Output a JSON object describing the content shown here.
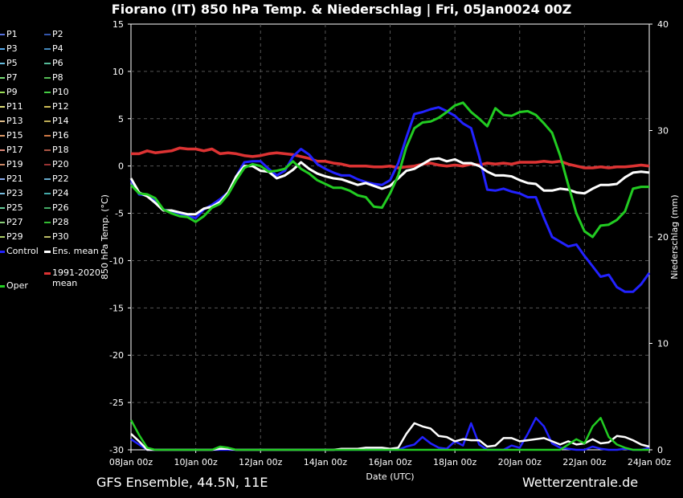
{
  "title": "Fiorano  (IT)  850 hPa Temp. & Niederschlag | Fri, 05Jan0024 00Z",
  "footer_left": "GFS Ensemble, 44.5N, 11E",
  "footer_right": "Wetterzentrale.de",
  "chart_data": {
    "type": "line",
    "xlabel": "Date (UTC)",
    "ylabel": "850 hPa Temp. (°C)",
    "y2label": "Niederschlag (mm)",
    "x_ticks": [
      "08Jan 00z",
      "10Jan 00z",
      "12Jan 00z",
      "14Jan 00z",
      "16Jan 00z",
      "18Jan 00z",
      "20Jan 00z",
      "22Jan 00z",
      "24Jan 00z"
    ],
    "ylim": [
      -30,
      15
    ],
    "y_ticks": [
      15,
      10,
      5,
      0,
      -5,
      -10,
      -15,
      -20,
      -25,
      -30
    ],
    "y2lim": [
      0,
      40
    ],
    "y2_ticks": [
      40,
      30,
      20,
      10,
      0
    ],
    "grid": true,
    "x_step_hours": 6,
    "x_start_day": 8,
    "series": [
      {
        "name": "Oper",
        "color": "#22cc22",
        "values": [
          -2,
          -2.9,
          -3,
          -3.4,
          -4.6,
          -5,
          -5.3,
          -5.4,
          -5.9,
          -5.3,
          -4.4,
          -4,
          -3,
          -1.5,
          -0.2,
          0.2,
          0,
          -0.6,
          -0.5,
          -0.3,
          0.5,
          -0.3,
          -0.8,
          -1.5,
          -1.9,
          -2.3,
          -2.3,
          -2.6,
          -3.1,
          -3.3,
          -4.3,
          -4.4,
          -2.9,
          -1,
          2,
          4,
          4.6,
          4.7,
          5.1,
          5.7,
          6.4,
          6.7,
          5.7,
          5,
          4.2,
          6.1,
          5.4,
          5.3,
          5.7,
          5.8,
          5.4,
          4.5,
          3.5,
          1.1,
          -2,
          -5,
          -6.9,
          -7.5,
          -6.3,
          -6.2,
          -5.7,
          -4.8,
          -2.4,
          -2.2,
          -2.2
        ]
      },
      {
        "name": "Control",
        "color": "#2222ff",
        "values": [
          -1.5,
          -3,
          -3.1,
          -3.6,
          -4.6,
          -4.8,
          -5,
          -5.3,
          -5.5,
          -4.6,
          -4.1,
          -3.5,
          -2.8,
          -1.1,
          0.4,
          0.5,
          0.5,
          -0.3,
          -1,
          -0.5,
          1,
          1.8,
          1.2,
          0.2,
          -0.3,
          -0.7,
          -1,
          -1,
          -1.4,
          -1.7,
          -1.9,
          -2,
          -1.5,
          0.3,
          3,
          5.5,
          5.7,
          6,
          6.2,
          5.8,
          5.3,
          4.5,
          4,
          1,
          -2.5,
          -2.6,
          -2.4,
          -2.7,
          -2.9,
          -3.3,
          -3.3,
          -5.5,
          -7.5,
          -8,
          -8.5,
          -8.3,
          -9.5,
          -10.6,
          -11.7,
          -11.5,
          -12.8,
          -13.3,
          -13.3,
          -12.5,
          -11.3
        ]
      },
      {
        "name": "Ens. mean",
        "color": "#ffffff",
        "values": [
          -1.3,
          -2.8,
          -3.2,
          -3.9,
          -4.7,
          -4.7,
          -4.9,
          -5.1,
          -5.1,
          -4.5,
          -4.3,
          -3.8,
          -2.8,
          -1.1,
          0,
          0,
          -0.5,
          -0.6,
          -1.3,
          -1,
          -0.4,
          0.4,
          -0.3,
          -0.8,
          -1.1,
          -1.3,
          -1.4,
          -1.7,
          -2,
          -1.8,
          -2.1,
          -2.4,
          -2.1,
          -1.3,
          -0.5,
          -0.3,
          0.2,
          0.7,
          0.8,
          0.5,
          0.7,
          0.3,
          0.3,
          0,
          -0.6,
          -1,
          -1,
          -1.1,
          -1.5,
          -1.8,
          -1.9,
          -2.6,
          -2.6,
          -2.4,
          -2.5,
          -2.8,
          -2.9,
          -2.4,
          -2,
          -2,
          -1.9,
          -1.2,
          -0.7,
          -0.6,
          -0.7
        ]
      },
      {
        "name": "1991-2020 mean",
        "color": "#dd3333",
        "values": [
          1.3,
          1.3,
          1.6,
          1.4,
          1.5,
          1.6,
          1.9,
          1.8,
          1.8,
          1.6,
          1.8,
          1.3,
          1.4,
          1.3,
          1.1,
          1,
          1.1,
          1.3,
          1.4,
          1.3,
          1.2,
          1,
          0.8,
          0.5,
          0.5,
          0.3,
          0.2,
          0,
          0,
          0,
          -0.1,
          -0.1,
          0,
          -0.2,
          -0.1,
          0,
          0.2,
          0.3,
          0.1,
          0,
          0.1,
          0,
          0.2,
          0.1,
          0.3,
          0.2,
          0.3,
          0.2,
          0.4,
          0.4,
          0.4,
          0.5,
          0.4,
          0.5,
          0.2,
          0,
          -0.2,
          -0.2,
          -0.1,
          -0.2,
          -0.1,
          -0.1,
          0,
          0.1,
          0
        ]
      }
    ],
    "precip_series": [
      {
        "name": "Oper",
        "color": "#22cc22",
        "values": [
          2.8,
          1.4,
          0.2,
          0,
          0,
          0,
          0,
          0,
          0,
          0,
          0,
          0.3,
          0.2,
          0,
          0,
          0,
          0,
          0,
          0,
          0,
          0,
          0,
          0,
          0,
          0,
          0,
          0,
          0,
          0,
          0,
          0,
          0,
          0,
          0,
          0,
          0,
          0,
          0,
          0,
          0,
          0,
          0,
          0,
          0,
          0,
          0,
          0,
          0,
          0,
          0,
          0,
          0,
          0,
          0,
          0.5,
          1,
          0.6,
          2.2,
          3,
          1.2,
          0.5,
          0.2,
          0,
          0,
          0
        ]
      },
      {
        "name": "Control",
        "color": "#2222ff",
        "values": [
          1,
          0.5,
          0,
          0,
          0,
          0,
          0,
          0,
          0,
          0,
          0,
          0,
          0,
          0,
          0,
          0,
          0,
          0,
          0,
          0,
          0,
          0,
          0,
          0,
          0,
          0,
          0,
          0,
          0,
          0,
          0,
          0,
          0,
          0,
          0.3,
          0.5,
          1.2,
          0.6,
          0.2,
          0.1,
          0.8,
          0.4,
          2.5,
          0.5,
          0,
          0,
          0,
          0.4,
          0.2,
          1.5,
          3,
          2.2,
          0.6,
          0.2,
          0.1,
          0,
          0,
          0.3,
          0.1,
          0,
          0,
          0.1,
          0,
          0,
          0.2
        ]
      },
      {
        "name": "Ens. mean",
        "color": "#ffffff",
        "values": [
          1.5,
          0.8,
          0,
          0,
          0,
          0,
          0,
          0,
          0,
          0,
          0,
          0.1,
          0.1,
          0,
          0,
          0,
          0,
          0,
          0,
          0,
          0,
          0,
          0,
          0,
          0,
          0,
          0.1,
          0.1,
          0.1,
          0.2,
          0.2,
          0.2,
          0.1,
          0.2,
          1.5,
          2.5,
          2.2,
          2,
          1.3,
          1.2,
          0.8,
          1,
          0.9,
          0.9,
          0.3,
          0.4,
          1.1,
          1.1,
          0.8,
          0.9,
          1,
          1.1,
          0.8,
          0.5,
          0.8,
          0.5,
          0.6,
          1,
          0.6,
          0.7,
          1.3,
          1.2,
          0.9,
          0.5,
          0.3
        ]
      }
    ],
    "legend": [
      "P1",
      "P2",
      "P3",
      "P4",
      "P5",
      "P6",
      "P7",
      "P8",
      "P9",
      "P10",
      "P11",
      "P12",
      "P13",
      "P14",
      "P15",
      "P16",
      "P17",
      "P18",
      "P19",
      "P20",
      "P21",
      "P22",
      "P23",
      "P24",
      "P25",
      "P26",
      "P27",
      "P28",
      "P29",
      "P30",
      "Control",
      "Ens. mean",
      "1991-2020 mean",
      "Oper"
    ],
    "legend_placement": "left",
    "colors": {
      "P1": "#5570dd",
      "P2": "#3355aa",
      "P3": "#55aaee",
      "P4": "#4488bb",
      "P5": "#66bbdd",
      "P6": "#55bb99",
      "P7": "#77dd77",
      "P8": "#55bb55",
      "P9": "#99dd55",
      "P10": "#44cc44",
      "P11": "#dddd77",
      "P12": "#ccbb55",
      "P13": "#ddbb88",
      "P14": "#bbaa55",
      "P15": "#dd9966",
      "P16": "#cc7744",
      "P17": "#dd8877",
      "P18": "#aa5544",
      "P19": "#cc8866",
      "P20": "#993333",
      "P21": "#88aaee",
      "P22": "#66aacc",
      "P23": "#77bbdd",
      "P24": "#44aaaa",
      "P25": "#66cc99",
      "P26": "#44aa66",
      "P27": "#88cc77",
      "P28": "#33bb33",
      "P29": "#aacc66",
      "P30": "#bbbb66"
    }
  }
}
